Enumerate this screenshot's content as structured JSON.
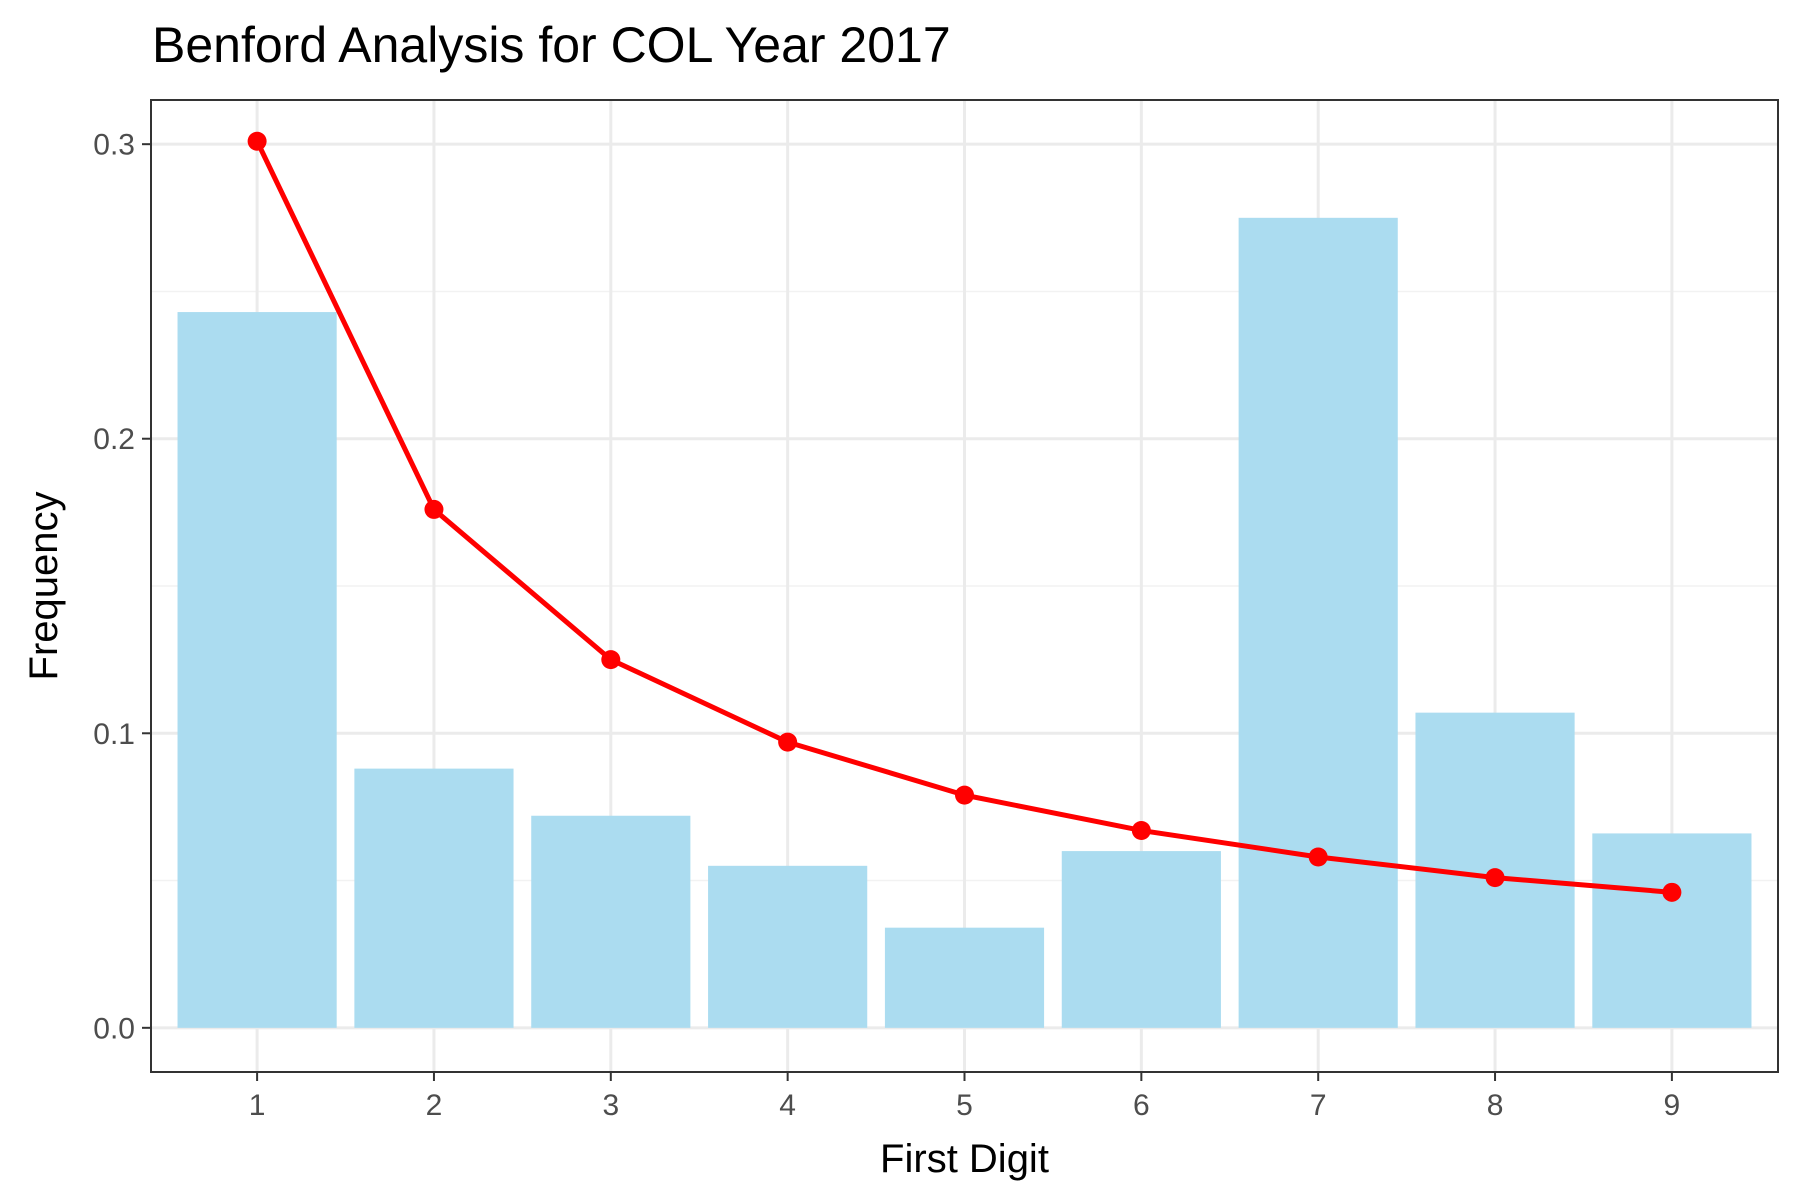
{
  "chart_data": {
    "type": "bar",
    "title": "Benford Analysis for COL Year 2017",
    "xlabel": "First Digit",
    "ylabel": "Frequency",
    "categories": [
      "1",
      "2",
      "3",
      "4",
      "5",
      "6",
      "7",
      "8",
      "9"
    ],
    "x_ticks": [
      "1",
      "2",
      "3",
      "4",
      "5",
      "6",
      "7",
      "8",
      "9"
    ],
    "y_ticks": [
      "0.0",
      "0.1",
      "0.2",
      "0.3"
    ],
    "ylim": [
      -0.015,
      0.315
    ],
    "grid": true,
    "series": [
      {
        "type": "bar",
        "color": "#abdcf0",
        "values": [
          0.243,
          0.088,
          0.072,
          0.055,
          0.034,
          0.06,
          0.275,
          0.107,
          0.066
        ]
      },
      {
        "type": "line",
        "color": "#ff0000",
        "values": [
          0.301,
          0.176,
          0.125,
          0.097,
          0.079,
          0.067,
          0.058,
          0.051,
          0.046
        ]
      }
    ]
  }
}
